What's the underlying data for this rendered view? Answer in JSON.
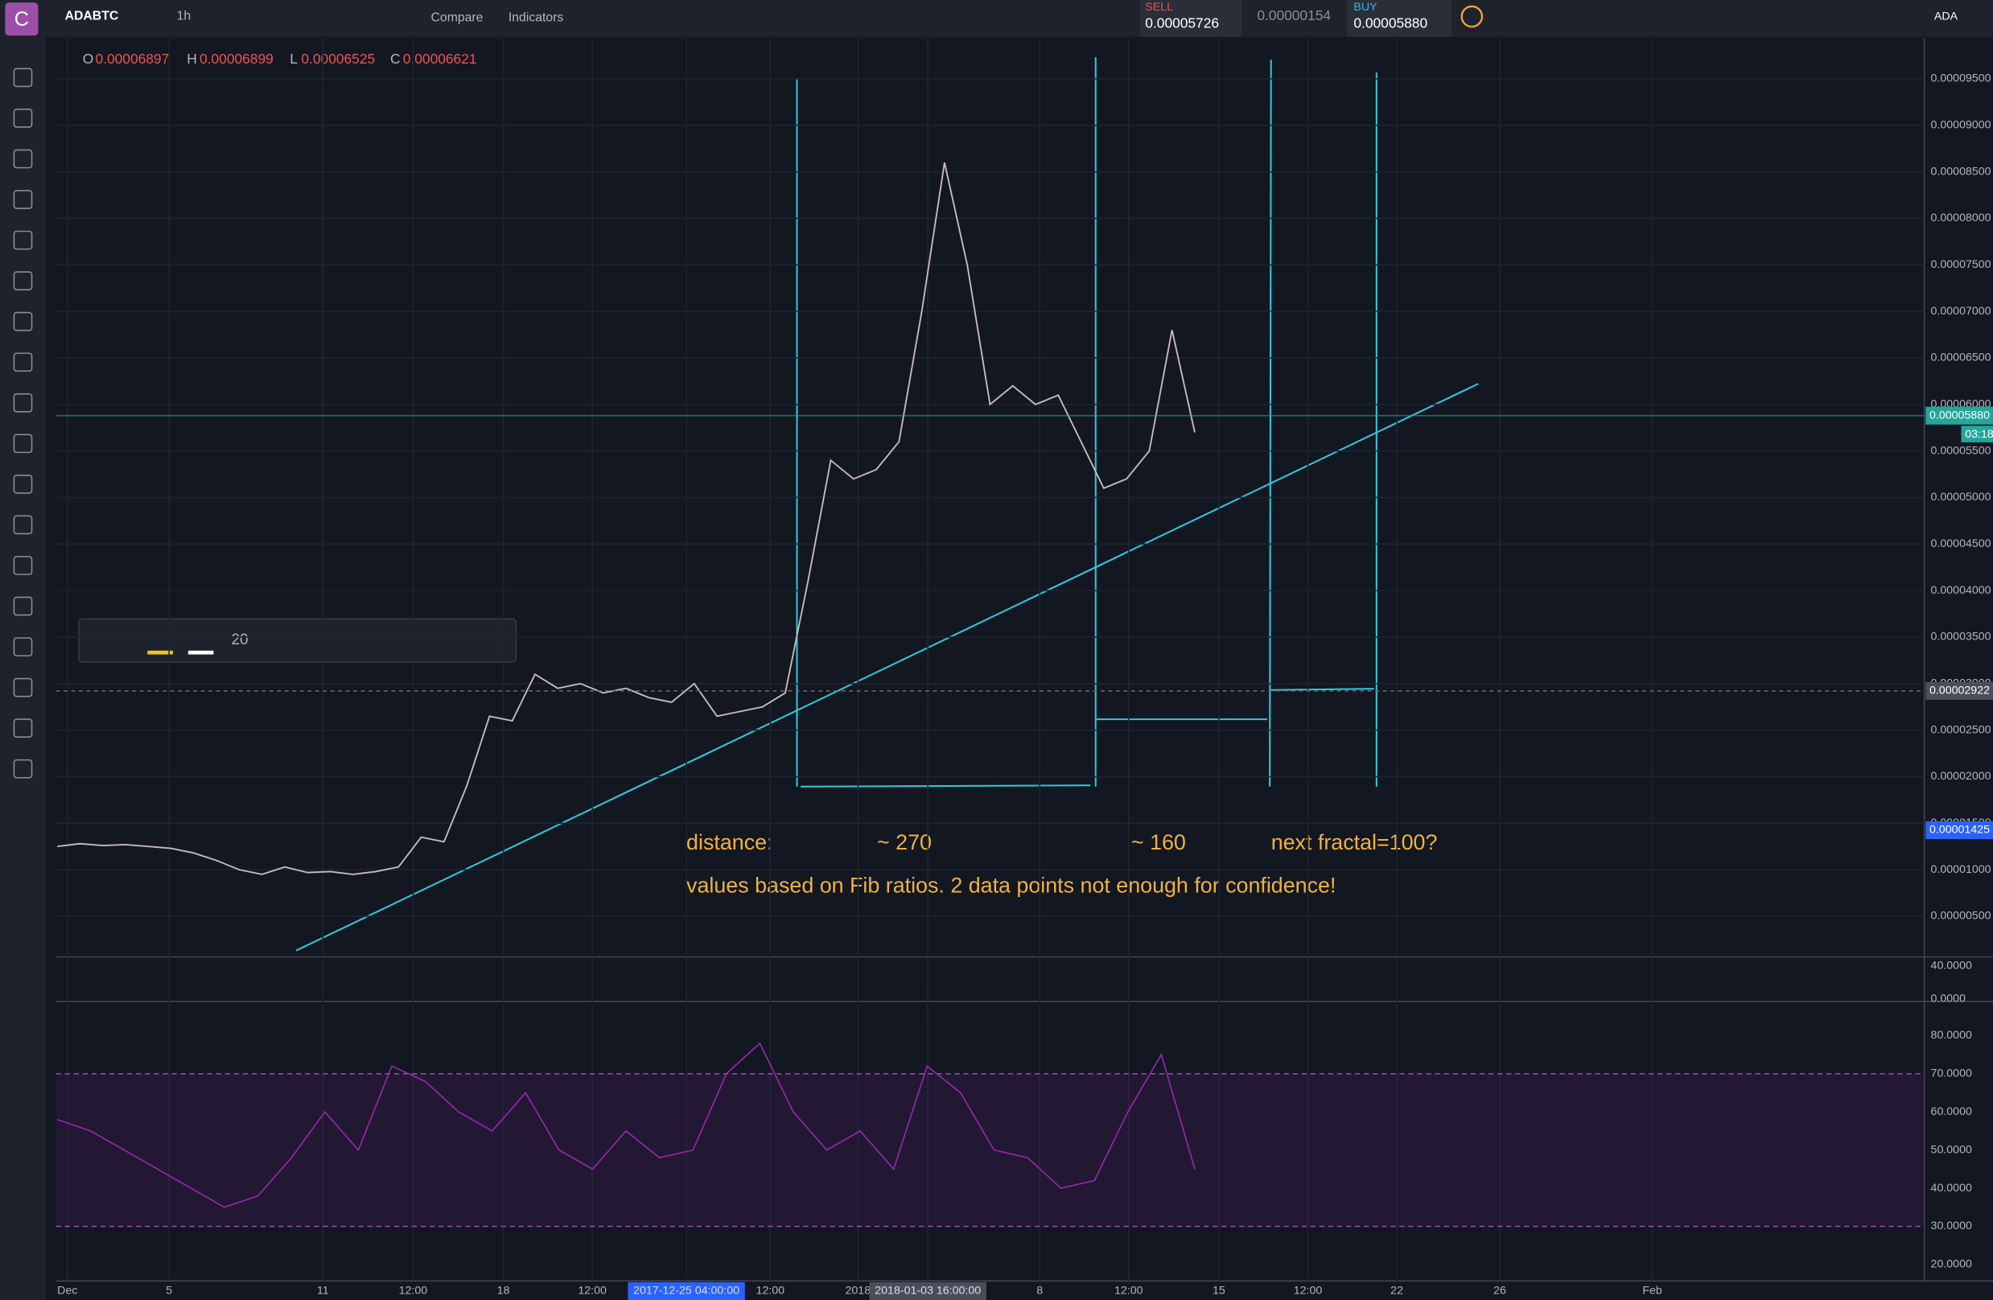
{
  "toolbar": {
    "logo": "C",
    "symbol": "ADABTC",
    "interval": "1h",
    "compare": "Compare",
    "indicators": "Indicators",
    "sell_label": "SELL",
    "sell_price": "0.00005726",
    "spread": "0.00000154",
    "buy_label": "BUY",
    "buy_price": "0.00005880",
    "currency": "ADA"
  },
  "legend": {
    "o_label": "O",
    "o": "0.00006897",
    "h_label": "H",
    "h": "0.00006899",
    "l_label": "L",
    "l": "0.00006525",
    "c_label": "C",
    "c": "0.00006621"
  },
  "drawing_toolbar": {
    "size": "20"
  },
  "price_chart": {
    "ylim": [
      7.7e-07,
      9.937e-05
    ],
    "yticks": [
      {
        "value": 5e-06,
        "label": "0.00000500"
      },
      {
        "value": 1e-05,
        "label": "0.00001000"
      },
      {
        "value": 1.5e-05,
        "label": "0.00001500"
      },
      {
        "value": 2e-05,
        "label": "0.00002000"
      },
      {
        "value": 2.5e-05,
        "label": "0.00002500"
      },
      {
        "value": 3e-05,
        "label": "0.00003000"
      },
      {
        "value": 3.5e-05,
        "label": "0.00003500"
      },
      {
        "value": 4e-05,
        "label": "0.00004000"
      },
      {
        "value": 4.5e-05,
        "label": "0.00004500"
      },
      {
        "value": 5e-05,
        "label": "0.00005000"
      },
      {
        "value": 5.5e-05,
        "label": "0.00005500"
      },
      {
        "value": 6e-05,
        "label": "0.00006000"
      },
      {
        "value": 6.5e-05,
        "label": "0.00006500"
      },
      {
        "value": 7e-05,
        "label": "0.00007000"
      },
      {
        "value": 7.5e-05,
        "label": "0.00007500"
      },
      {
        "value": 8e-05,
        "label": "0.00008000"
      },
      {
        "value": 8.5e-05,
        "label": "0.00008500"
      },
      {
        "value": 9e-05,
        "label": "0.00009000"
      },
      {
        "value": 9.5e-05,
        "label": "0.00009500"
      }
    ],
    "values": [
      1.25e-05,
      1.28e-05,
      1.26e-05,
      1.27e-05,
      1.25e-05,
      1.23e-05,
      1.18e-05,
      1.1e-05,
      1e-05,
      9.5e-06,
      1.03e-05,
      9.7e-06,
      9.8e-06,
      9.5e-06,
      9.8e-06,
      1.03e-05,
      1.35e-05,
      1.3e-05,
      1.9e-05,
      2.65e-05,
      2.6e-05,
      3.1e-05,
      2.95e-05,
      3e-05,
      2.9e-05,
      2.95e-05,
      2.85e-05,
      2.8e-05,
      3e-05,
      2.65e-05,
      2.7e-05,
      2.75e-05,
      2.9e-05,
      4.1e-05,
      5.4e-05,
      5.2e-05,
      5.3e-05,
      5.6e-05,
      7e-05,
      8.6e-05,
      7.5e-05,
      6e-05,
      6.2e-05,
      6e-05,
      6.1e-05,
      5.6e-05,
      5.1e-05,
      5.2e-05,
      5.5e-05,
      6.8e-05,
      5.7e-05
    ],
    "last_price": {
      "value": 5.88e-05,
      "label": "0.00005880"
    },
    "countdown": "03:18",
    "crosshair": {
      "value": 2.922e-05,
      "label": "0.00002922"
    },
    "marker": {
      "value": 1.425e-05,
      "label": "0.00001425"
    }
  },
  "volume_pane": {
    "ticks": [
      "40.0000",
      "0.0000"
    ]
  },
  "rsi": {
    "ylim": [
      16.7,
      88.3
    ],
    "yticks": [
      {
        "value": 80,
        "label": "80.0000"
      },
      {
        "value": 70,
        "label": "70.0000"
      },
      {
        "value": 60,
        "label": "60.0000"
      },
      {
        "value": 50,
        "label": "50.0000"
      },
      {
        "value": 40,
        "label": "40.0000"
      },
      {
        "value": 30,
        "label": "30.0000"
      },
      {
        "value": 20,
        "label": "20.0000"
      }
    ],
    "band": [
      30,
      70
    ],
    "values": [
      58,
      55,
      50,
      45,
      40,
      35,
      38,
      48,
      60,
      50,
      72,
      68,
      60,
      55,
      65,
      50,
      45,
      55,
      48,
      50,
      70,
      78,
      60,
      50,
      55,
      45,
      72,
      65,
      50,
      48,
      40,
      42,
      60,
      75,
      45
    ]
  },
  "time_axis": [
    "Dec",
    "5",
    "11",
    "12:00",
    "18",
    "12:00",
    "2017-12-25 04:00:00",
    "12:00",
    "2018",
    "2018-01-03 16:00:00",
    "8",
    "12:00",
    "15",
    "12:00",
    "22",
    "26",
    "Feb"
  ],
  "annotations": {
    "distance": "distance:",
    "first": "~ 270",
    "second": "~ 160",
    "next": "next fractal=100?",
    "note": "values based on Fib ratios. 2 data points not enough for confidence!"
  }
}
